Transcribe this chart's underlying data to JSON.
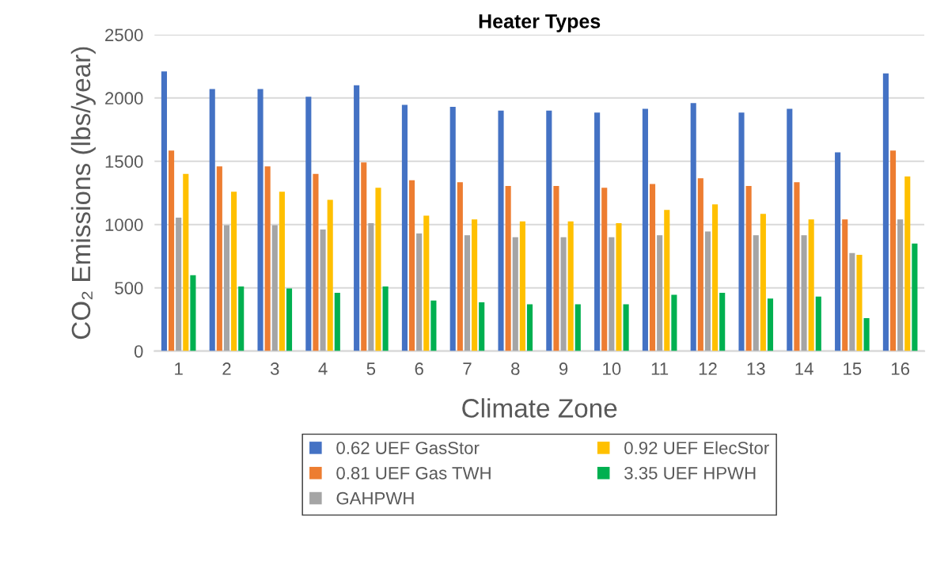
{
  "chart_data": {
    "type": "bar",
    "title": "Heater Types",
    "xlabel": "Climate Zone",
    "ylabel": "CO₂ Emissions (lbs/year)",
    "categories": [
      "1",
      "2",
      "3",
      "4",
      "5",
      "6",
      "7",
      "8",
      "9",
      "10",
      "11",
      "12",
      "13",
      "14",
      "15",
      "16"
    ],
    "series": [
      {
        "name": "0.62 UEF GasStor",
        "color": "#4472c4",
        "values": [
          2210,
          2070,
          2070,
          2010,
          2100,
          1945,
          1930,
          1900,
          1900,
          1885,
          1915,
          1960,
          1885,
          1915,
          1570,
          2195
        ]
      },
      {
        "name": "0.81 UEF Gas TWH",
        "color": "#ed7d31",
        "values": [
          1585,
          1460,
          1460,
          1400,
          1490,
          1350,
          1335,
          1305,
          1305,
          1290,
          1320,
          1365,
          1305,
          1335,
          1040,
          1585
        ]
      },
      {
        "name": "GAHPWH",
        "color": "#a5a5a5",
        "values": [
          1055,
          995,
          995,
          960,
          1010,
          930,
          915,
          900,
          900,
          900,
          915,
          945,
          915,
          915,
          775,
          1040
        ]
      },
      {
        "name": "0.92 UEF ElecStor",
        "color": "#ffc000",
        "values": [
          1400,
          1260,
          1260,
          1195,
          1290,
          1070,
          1040,
          1025,
          1025,
          1010,
          1115,
          1160,
          1085,
          1040,
          760,
          1380
        ]
      },
      {
        "name": "3.35 UEF HPWH",
        "color": "#00b050",
        "values": [
          600,
          510,
          495,
          460,
          510,
          400,
          385,
          370,
          370,
          370,
          445,
          460,
          415,
          430,
          260,
          850
        ]
      }
    ],
    "ylim": [
      0,
      2500
    ],
    "yticks": [
      0,
      500,
      1000,
      1500,
      2000,
      2500
    ],
    "grid": "y",
    "legend": "bottom"
  }
}
